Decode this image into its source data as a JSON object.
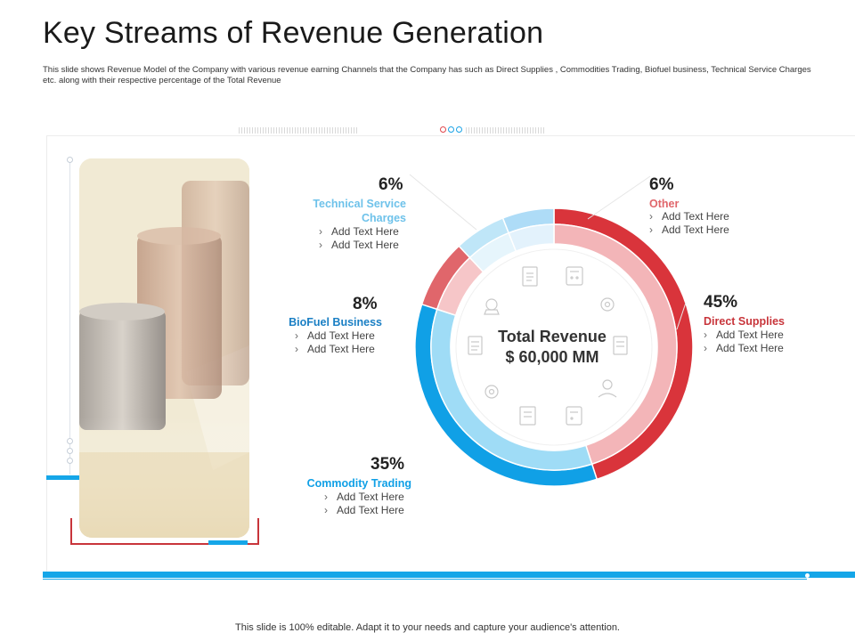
{
  "slide": {
    "title": "Key Streams of Revenue Generation",
    "subtitle": "This slide shows Revenue Model of the Company with various revenue earning Channels that the Company  has such as Direct Supplies , Commodities  Trading, Biofuel business, Technical Service Charges etc. along  with their respective percentage of the Total Revenue",
    "footer": "This slide is 100% editable. Adapt it to your needs and capture your audience's attention."
  },
  "center": {
    "line1": "Total Revenue",
    "line2": "$ 60,000 MM"
  },
  "chart_data": {
    "type": "pie",
    "categories": [
      "Direct Supplies",
      "Commodity Trading",
      "BioFuel Business",
      "Technical Service Charges",
      "Other"
    ],
    "values": [
      45,
      35,
      8,
      6,
      6
    ],
    "title": "",
    "colors": {
      "outer": [
        "#d9343b",
        "#10a0e6",
        "#e0666b",
        "#bfe6f8",
        "#aedcf7"
      ],
      "inner": [
        "#f3b5b8",
        "#9fdcf6",
        "#f6c6c8",
        "#e6f5fc",
        "#e3f2fc"
      ]
    }
  },
  "streams": [
    {
      "pct": "45%",
      "name": "Direct Supplies",
      "color": "#c8353b",
      "bullets": [
        "Add Text Here",
        "Add Text Here"
      ]
    },
    {
      "pct": "35%",
      "name": "Commodity Trading",
      "color": "#10a0e6",
      "bullets": [
        "Add Text Here",
        "Add Text Here"
      ]
    },
    {
      "pct": "8%",
      "name": "BioFuel Business",
      "color": "#1a7fc4",
      "bullets": [
        "Add Text Here",
        "Add Text Here"
      ]
    },
    {
      "pct": "6%",
      "name_line1": "Technical Service",
      "name_line2": "Charges",
      "color": "#6ec2ea",
      "bullets": [
        "Add Text Here",
        "Add Text Here"
      ]
    },
    {
      "pct": "6%",
      "name": "Other",
      "color": "#e0666b",
      "bullets": [
        "Add Text Here",
        "Add Text Here"
      ]
    }
  ],
  "icons": [
    "document-icon",
    "calculator-icon",
    "gear-icon",
    "money-bag-icon",
    "handshake-icon",
    "report-icon"
  ]
}
